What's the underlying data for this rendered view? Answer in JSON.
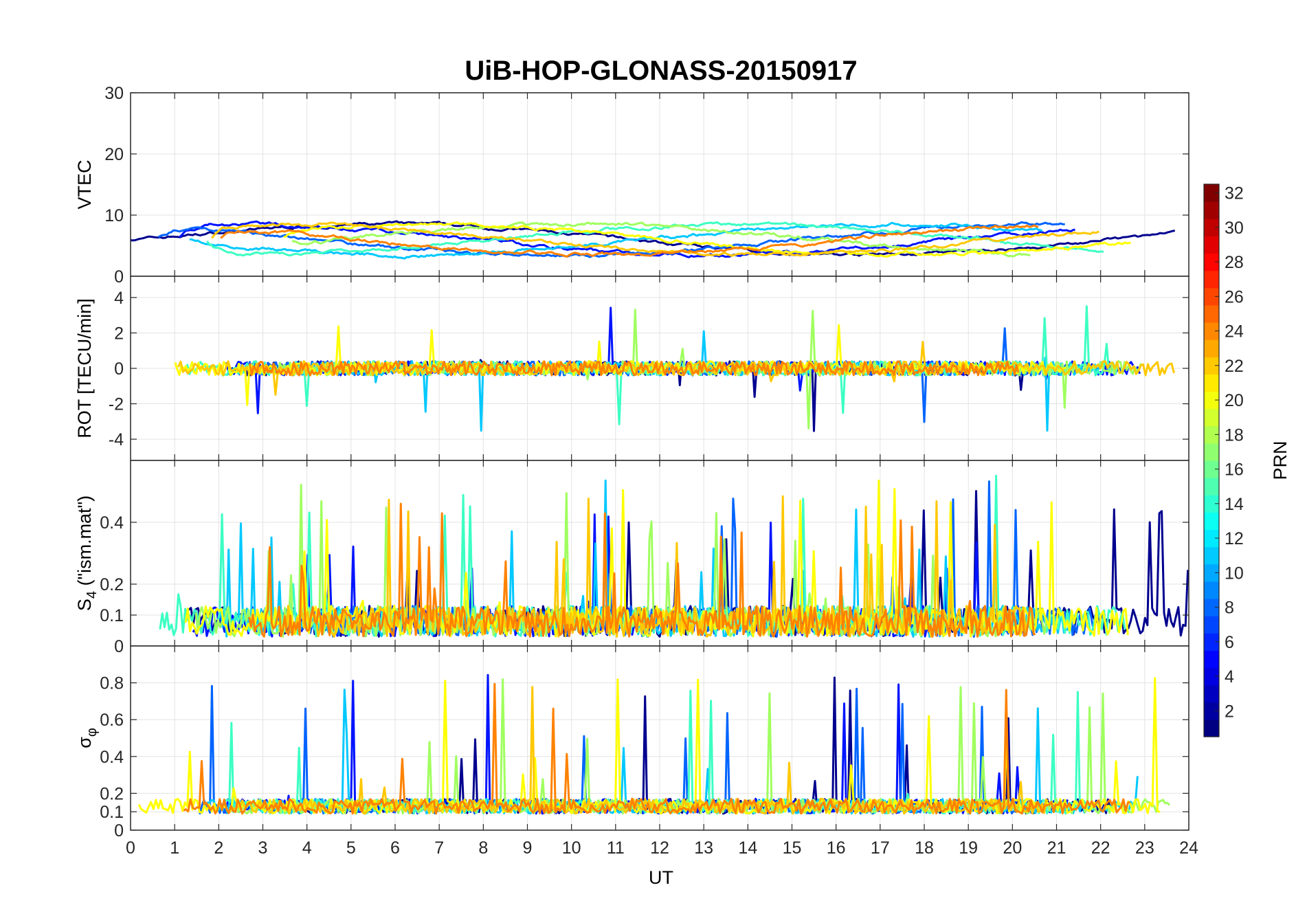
{
  "chart_data": {
    "type": "line",
    "title": "UiB-HOP-GLONASS-20150917",
    "xlabel": "UT",
    "xlim": [
      0,
      24
    ],
    "x_ticks": [
      "0",
      "1",
      "2",
      "3",
      "4",
      "5",
      "6",
      "7",
      "8",
      "9",
      "10",
      "11",
      "12",
      "13",
      "14",
      "15",
      "16",
      "17",
      "18",
      "19",
      "20",
      "21",
      "22",
      "23",
      "24"
    ],
    "grid": true,
    "panels": [
      {
        "id": "vtec",
        "ylabel": "VTEC",
        "ylim": [
          0,
          30
        ],
        "y_ticks": [
          {
            "v": 0,
            "label": "0"
          },
          {
            "v": 10,
            "label": "10"
          },
          {
            "v": 20,
            "label": "20"
          },
          {
            "v": 30,
            "label": "30"
          }
        ],
        "baseline": 6,
        "noise": 1.2,
        "spike_prob": 0.0
      },
      {
        "id": "rot",
        "ylabel": "ROT [TECU/min]",
        "ylim": [
          -5.2,
          5.2
        ],
        "y_ticks": [
          {
            "v": -4,
            "label": "-4"
          },
          {
            "v": -2,
            "label": "-2"
          },
          {
            "v": 0,
            "label": "0"
          },
          {
            "v": 2,
            "label": "2"
          },
          {
            "v": 4,
            "label": "4"
          }
        ],
        "baseline": 0,
        "noise": 0.4,
        "spike_prob": 0.01
      },
      {
        "id": "s4",
        "ylabel": "S4 (\"ism.mat\")",
        "ylabel_main": "S",
        "ylabel_sub": "4",
        "ylabel_rest": " (\"ism.mat\")",
        "ylim": [
          0,
          0.6
        ],
        "y_ticks": [
          {
            "v": 0,
            "label": "0"
          },
          {
            "v": 0.1,
            "label": "0.1"
          },
          {
            "v": 0.2,
            "label": "0.2"
          },
          {
            "v": 0.4,
            "label": "0.4"
          }
        ],
        "baseline": 0.08,
        "noise": 0.05,
        "spike_prob": 0.04
      },
      {
        "id": "sigphi",
        "ylabel": "σφ",
        "ylabel_main": "σ",
        "ylabel_sub": "φ",
        "ylim": [
          0,
          1
        ],
        "y_ticks": [
          {
            "v": 0,
            "label": "0"
          },
          {
            "v": 0.1,
            "label": "0.1"
          },
          {
            "v": 0.2,
            "label": "0.2"
          },
          {
            "v": 0.4,
            "label": "0.4"
          },
          {
            "v": 0.6,
            "label": "0.6"
          },
          {
            "v": 0.8,
            "label": "0.8"
          }
        ],
        "baseline": 0.13,
        "noise": 0.04,
        "spike_prob": 0.02
      }
    ],
    "colorbar": {
      "label": "PRN",
      "range": [
        1,
        32
      ],
      "ticks": [
        "2",
        "4",
        "6",
        "8",
        "10",
        "12",
        "14",
        "16",
        "18",
        "20",
        "22",
        "24",
        "26",
        "28",
        "30",
        "32"
      ],
      "colormap": "jet"
    },
    "series_colors": [
      "#00008f",
      "#0014ff",
      "#0064ff",
      "#00c8ff",
      "#3cffc3",
      "#a0ff5f",
      "#ffff00",
      "#ffc800",
      "#ff8200"
    ]
  }
}
